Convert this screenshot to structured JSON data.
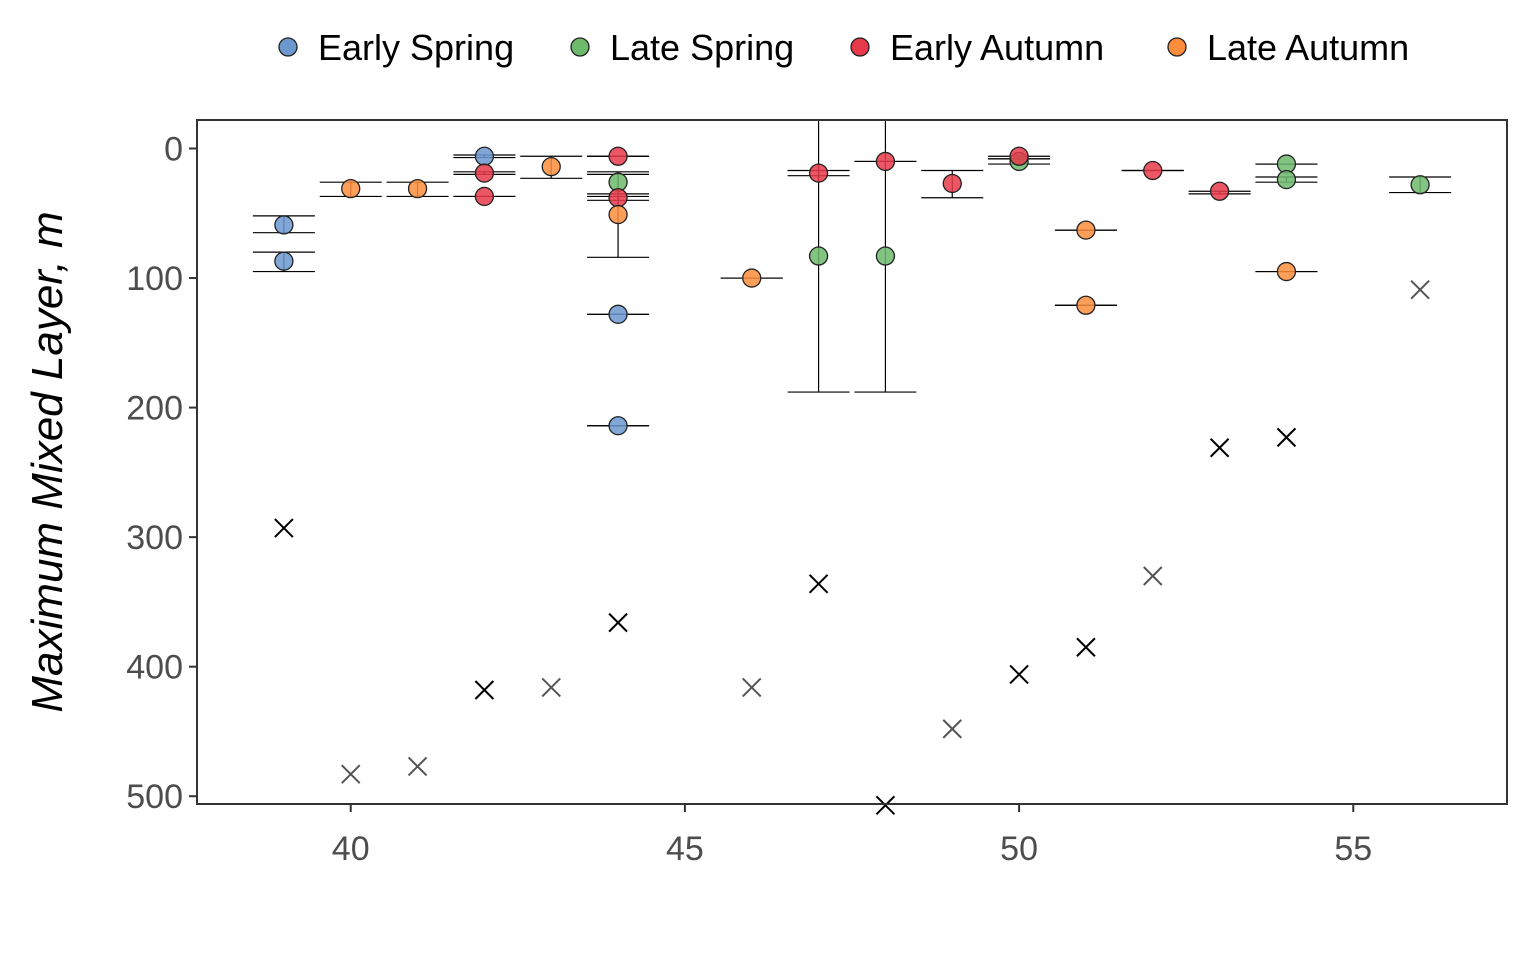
{
  "chart_data": {
    "type": "scatter",
    "title": "",
    "xlabel": "",
    "ylabel": "Maximum Mixed Layer, m",
    "xlim": [
      37.7,
      57.3
    ],
    "ylim": [
      -22,
      506
    ],
    "y_reversed": true,
    "xticks": [
      40,
      45,
      50,
      55
    ],
    "yticks": [
      0,
      100,
      200,
      300,
      400,
      500
    ],
    "grid": false,
    "legend_position": "top",
    "series": [
      {
        "name": "Early Spring",
        "color": "#6a98cf",
        "points": [
          {
            "x": 39,
            "y": 59,
            "err_low": 52,
            "err_high": 65
          },
          {
            "x": 39,
            "y": 87,
            "err_low": 80,
            "err_high": 95
          },
          {
            "x": 42,
            "y": 6,
            "err_low": 5,
            "err_high": 7
          },
          {
            "x": 44,
            "y": 128,
            "err_low": 128,
            "err_high": 128
          },
          {
            "x": 44,
            "y": 214,
            "err_low": 214,
            "err_high": 214
          }
        ]
      },
      {
        "name": "Late Spring",
        "color": "#6dba6d",
        "points": [
          {
            "x": 44,
            "y": 26,
            "err_low": 20,
            "err_high": 35
          },
          {
            "x": 47,
            "y": 83,
            "err_low": -22,
            "err_high": 188
          },
          {
            "x": 48,
            "y": 83,
            "err_low": -22,
            "err_high": 188
          },
          {
            "x": 50,
            "y": 10,
            "err_low": 8,
            "err_high": 12
          },
          {
            "x": 54,
            "y": 12,
            "err_low": 12,
            "err_high": 12
          },
          {
            "x": 54,
            "y": 24,
            "err_low": 22,
            "err_high": 26
          },
          {
            "x": 56,
            "y": 28,
            "err_low": 22,
            "err_high": 34
          }
        ]
      },
      {
        "name": "Early Autumn",
        "color": "#e8394a",
        "points": [
          {
            "x": 42,
            "y": 19,
            "err_low": 18,
            "err_high": 20
          },
          {
            "x": 42,
            "y": 37,
            "err_low": 37,
            "err_high": 37
          },
          {
            "x": 44,
            "y": 6,
            "err_low": 6,
            "err_high": 6
          },
          {
            "x": 44,
            "y": 38,
            "err_low": 37,
            "err_high": 40
          },
          {
            "x": 47,
            "y": 19,
            "err_low": 17,
            "err_high": 21
          },
          {
            "x": 48,
            "y": 10,
            "err_low": 10,
            "err_high": 10
          },
          {
            "x": 49,
            "y": 27,
            "err_low": 17,
            "err_high": 38
          },
          {
            "x": 50,
            "y": 6,
            "err_low": 6,
            "err_high": 8
          },
          {
            "x": 52,
            "y": 17,
            "err_low": 17,
            "err_high": 17
          },
          {
            "x": 53,
            "y": 33,
            "err_low": 33,
            "err_high": 35
          }
        ]
      },
      {
        "name": "Late Autumn",
        "color": "#fd8d3c",
        "points": [
          {
            "x": 40,
            "y": 31,
            "err_low": 26,
            "err_high": 37
          },
          {
            "x": 41,
            "y": 31,
            "err_low": 26,
            "err_high": 37
          },
          {
            "x": 43,
            "y": 14,
            "err_low": 6,
            "err_high": 23
          },
          {
            "x": 44,
            "y": 51,
            "err_low": 18,
            "err_high": 84
          },
          {
            "x": 46,
            "y": 100,
            "err_low": 100,
            "err_high": 100
          },
          {
            "x": 51,
            "y": 63,
            "err_low": 63,
            "err_high": 63
          },
          {
            "x": 51,
            "y": 121,
            "err_low": 121,
            "err_high": 121
          },
          {
            "x": 54,
            "y": 95,
            "err_low": 95,
            "err_high": 95
          }
        ]
      }
    ],
    "cross_markers": [
      {
        "x": 39,
        "y": 293,
        "color": "#000000"
      },
      {
        "x": 40,
        "y": 483,
        "color": "#555555"
      },
      {
        "x": 41,
        "y": 477,
        "color": "#555555"
      },
      {
        "x": 42,
        "y": 418,
        "color": "#000000"
      },
      {
        "x": 43,
        "y": 416,
        "color": "#555555"
      },
      {
        "x": 44,
        "y": 366,
        "color": "#000000"
      },
      {
        "x": 46,
        "y": 416,
        "color": "#555555"
      },
      {
        "x": 47,
        "y": 336,
        "color": "#000000"
      },
      {
        "x": 48,
        "y": 507,
        "color": "#000000"
      },
      {
        "x": 49,
        "y": 448,
        "color": "#555555"
      },
      {
        "x": 50,
        "y": 406,
        "color": "#000000"
      },
      {
        "x": 51,
        "y": 385,
        "color": "#000000"
      },
      {
        "x": 52,
        "y": 330,
        "color": "#555555"
      },
      {
        "x": 53,
        "y": 231,
        "color": "#000000"
      },
      {
        "x": 54,
        "y": 223,
        "color": "#000000"
      },
      {
        "x": 56,
        "y": 109,
        "color": "#555555"
      }
    ]
  }
}
